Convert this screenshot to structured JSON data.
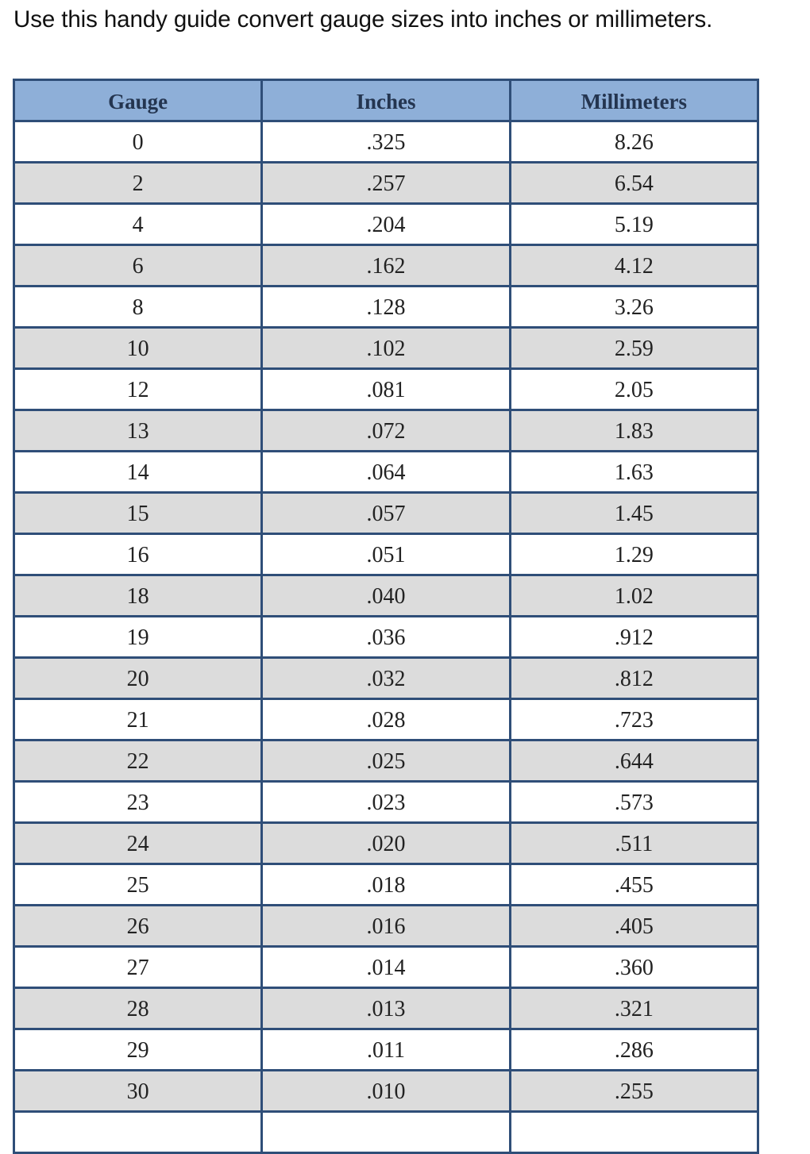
{
  "title": "Use this handy guide convert gauge sizes into inches or millimeters.",
  "table": {
    "headers": [
      "Gauge",
      "Inches",
      "Millimeters"
    ],
    "rows": [
      [
        "0",
        ".325",
        "8.26"
      ],
      [
        "2",
        ".257",
        "6.54"
      ],
      [
        "4",
        ".204",
        "5.19"
      ],
      [
        "6",
        ".162",
        "4.12"
      ],
      [
        "8",
        ".128",
        "3.26"
      ],
      [
        "10",
        ".102",
        "2.59"
      ],
      [
        "12",
        ".081",
        "2.05"
      ],
      [
        "13",
        ".072",
        "1.83"
      ],
      [
        "14",
        ".064",
        "1.63"
      ],
      [
        "15",
        ".057",
        "1.45"
      ],
      [
        "16",
        ".051",
        "1.29"
      ],
      [
        "18",
        ".040",
        "1.02"
      ],
      [
        "19",
        ".036",
        ".912"
      ],
      [
        "20",
        ".032",
        ".812"
      ],
      [
        "21",
        ".028",
        ".723"
      ],
      [
        "22",
        ".025",
        ".644"
      ],
      [
        "23",
        ".023",
        ".573"
      ],
      [
        "24",
        ".020",
        ".511"
      ],
      [
        "25",
        ".018",
        ".455"
      ],
      [
        "26",
        ".016",
        ".405"
      ],
      [
        "27",
        ".014",
        ".360"
      ],
      [
        "28",
        ".013",
        ".321"
      ],
      [
        "29",
        ".011",
        ".286"
      ],
      [
        "30",
        ".010",
        ".255"
      ]
    ]
  },
  "colors": {
    "header_bg": "#8eafd8",
    "border": "#2f4e78",
    "alt_row": "#dcdcdc"
  }
}
